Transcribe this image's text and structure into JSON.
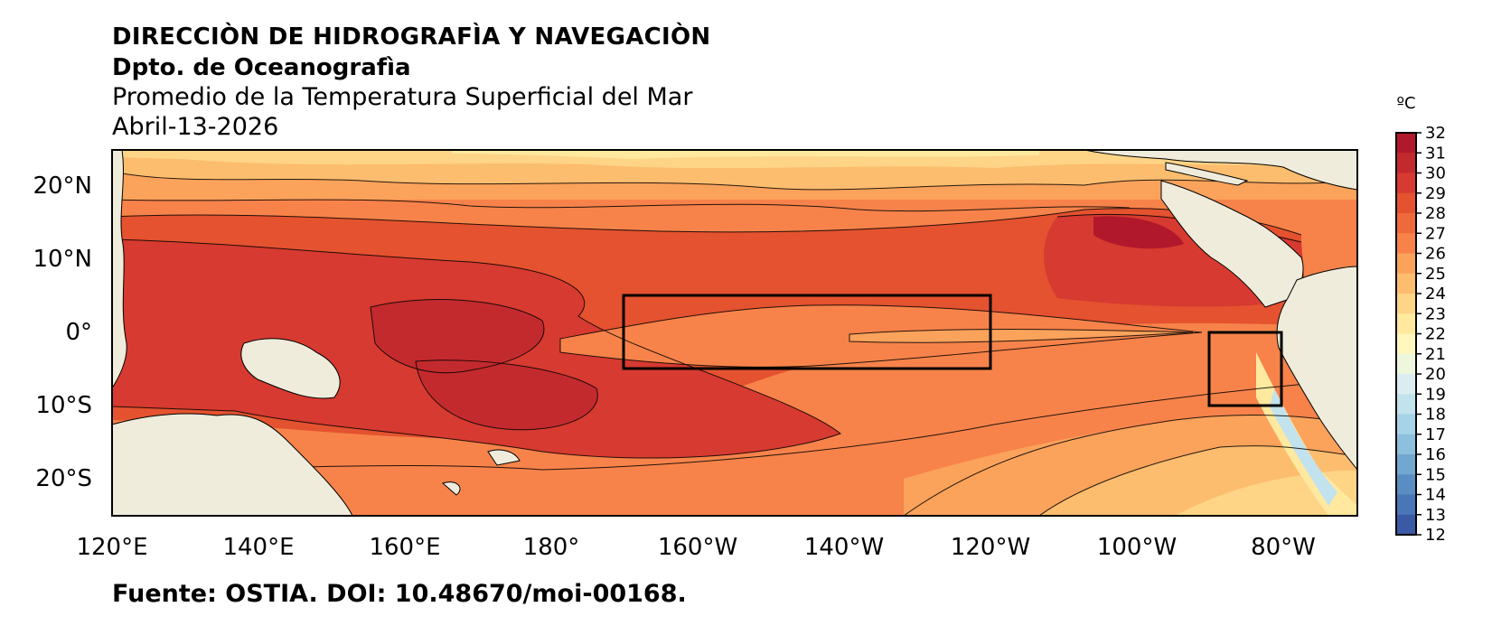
{
  "header": {
    "line1": "DIRECCIÒN DE HIDROGRAFÌA Y NAVEGACIÒN",
    "line2": "Dpto. de Oceanografìa",
    "line3": "Promedio de la Temperatura Superficial del Mar",
    "line4": "Abril-13-2026"
  },
  "footer": {
    "source": "Fuente: OSTIA. DOI: 10.48670/moi-00168."
  },
  "map": {
    "lat_labels": [
      "20°N",
      "10°N",
      "0°",
      "10°S",
      "20°S"
    ],
    "lon_labels": [
      "120°E",
      "140°E",
      "160°E",
      "180°",
      "160°W",
      "140°W",
      "120°W",
      "100°W",
      "80°W"
    ],
    "boxes": [
      "Niño 3.4",
      "Niño 1+2"
    ]
  },
  "colorbar": {
    "unit": "ºC",
    "ticks": [
      "32",
      "31",
      "30",
      "29",
      "28",
      "27",
      "26",
      "25",
      "24",
      "23",
      "22",
      "21",
      "20",
      "19",
      "18",
      "17",
      "16",
      "15",
      "14",
      "13",
      "12"
    ],
    "colors": [
      "#b2182b",
      "#c32a2e",
      "#d73a30",
      "#e4522f",
      "#ef6a3a",
      "#f7834a",
      "#fba25b",
      "#fdbd6e",
      "#fed487",
      "#fee99f",
      "#fff7bd",
      "#eef6dd",
      "#dcedf1",
      "#c2e2ee",
      "#a6d3e6",
      "#8cc0dc",
      "#72a7cf",
      "#5a8ec2",
      "#4876b6",
      "#3a5aa6"
    ]
  },
  "palette": {
    "land": "#efecdc",
    "frame": "#000000"
  }
}
